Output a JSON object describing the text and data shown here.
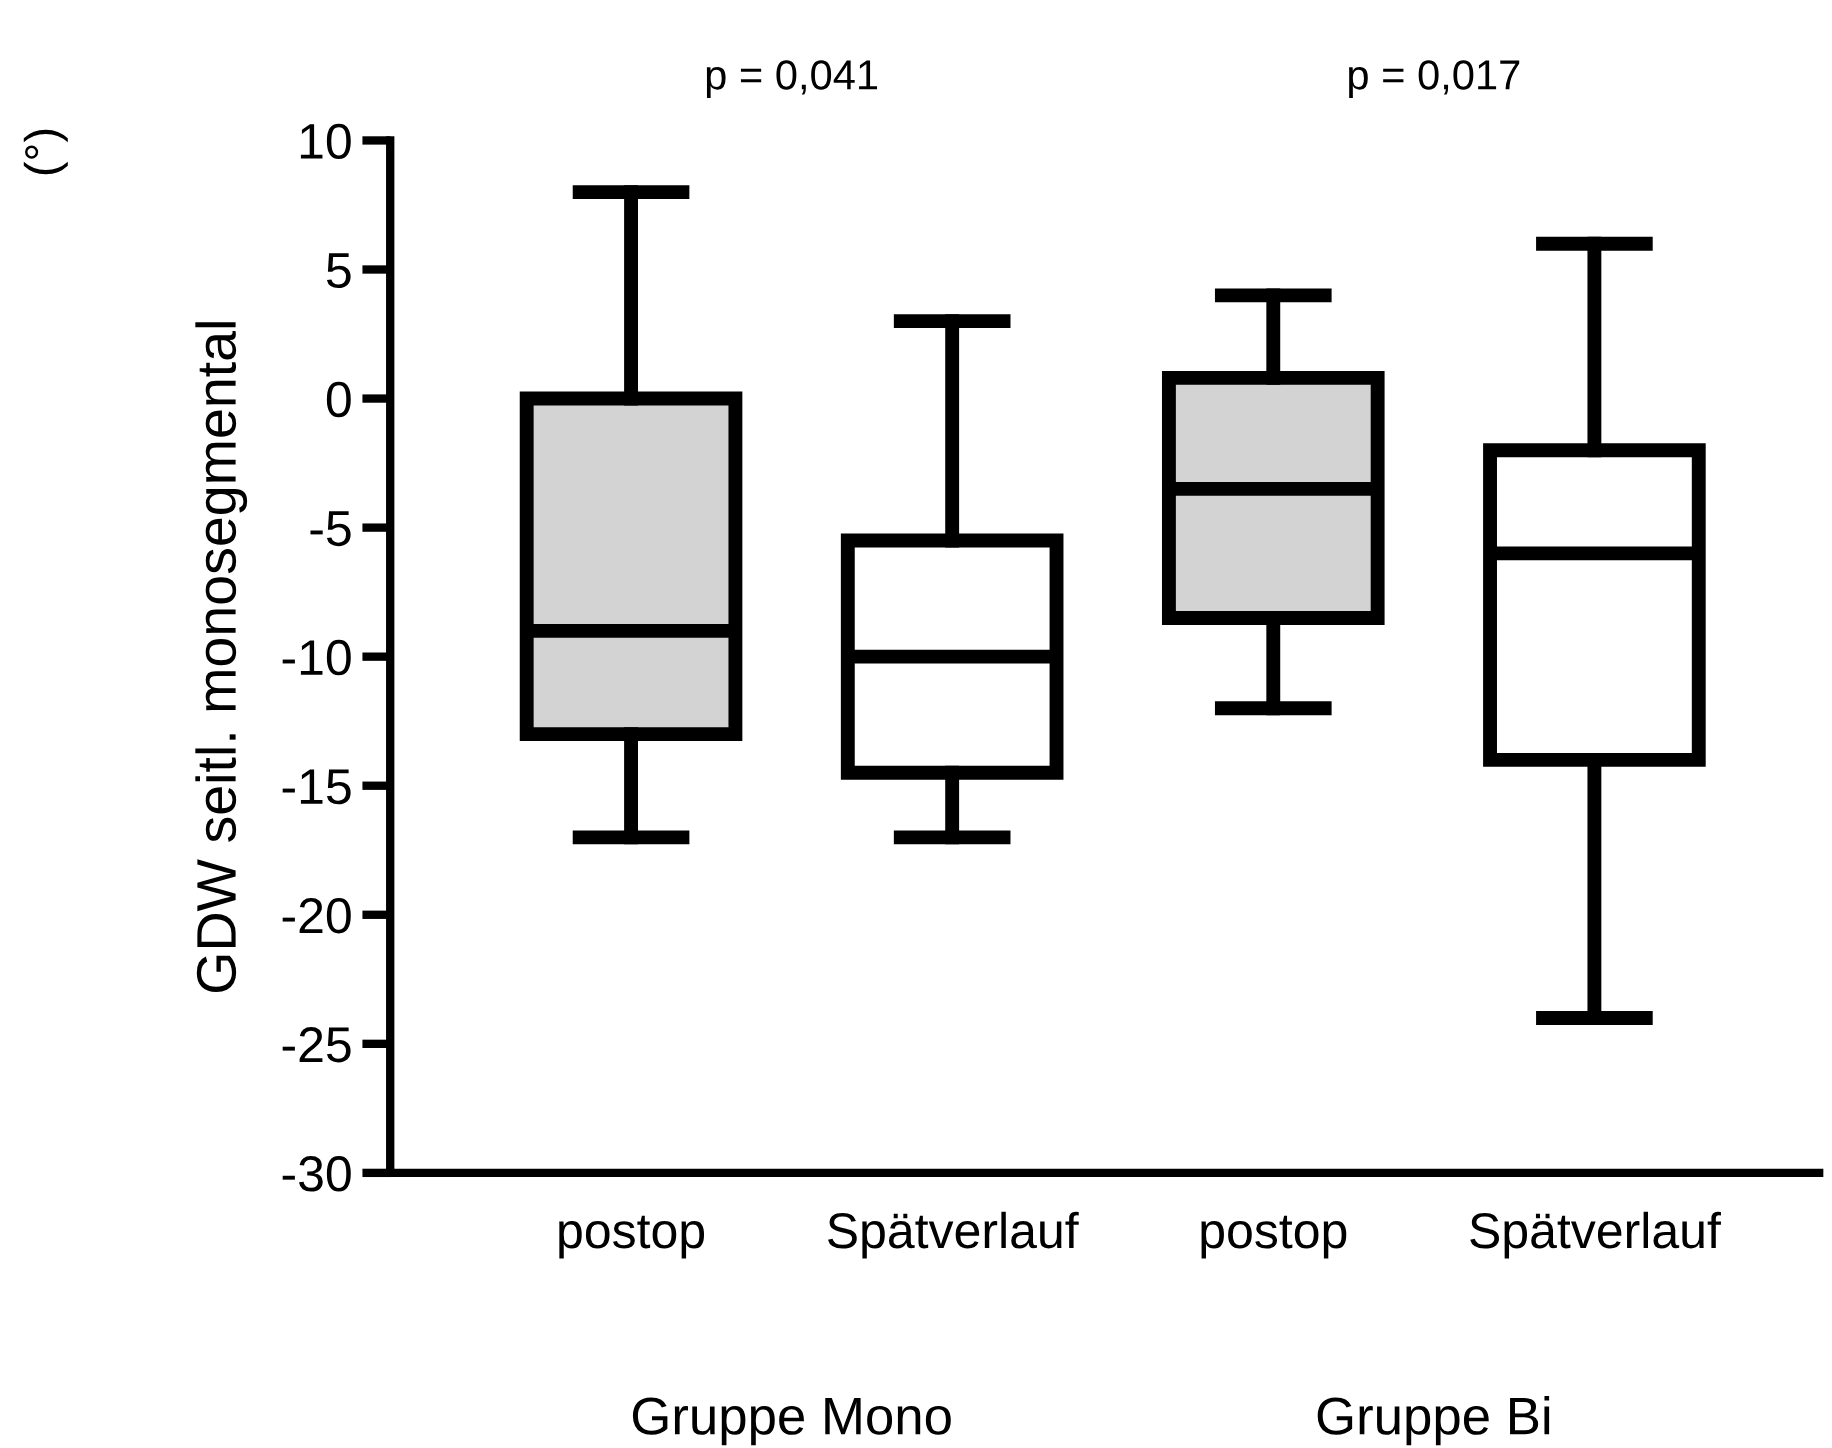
{
  "chart_data": {
    "type": "box",
    "ylabel": "GDW seitl. monosegmental",
    "categories": [
      "postop",
      "Spätverlauf",
      "postop",
      "Spätverlauf"
    ],
    "boxes": [
      {
        "low": -17,
        "q1": -13,
        "median": -9,
        "q3": 0,
        "high": 8
      },
      {
        "low": -17,
        "q1": -14.5,
        "median": -10,
        "q3": -5.5,
        "high": 3
      },
      {
        "low": -12,
        "q1": -8.5,
        "median": -3.5,
        "q3": 0.8,
        "high": 4
      },
      {
        "low": -24,
        "q1": -14,
        "median": -6,
        "q3": -2,
        "high": 6
      }
    ],
    "colors": [
      "#d3d3d3",
      "#ffffff",
      "#d3d3d3",
      "#ffffff"
    ],
    "ylim": [
      -30,
      10
    ],
    "yticks": [
      -30,
      -25,
      -20,
      -15,
      -10,
      -5,
      0,
      5,
      10
    ],
    "annotations": [
      "p = 0,041",
      "p = 0,017",
      "Gruppe Mono",
      "Gruppe Bi",
      "(°)"
    ],
    "grid": false,
    "legend": false
  }
}
